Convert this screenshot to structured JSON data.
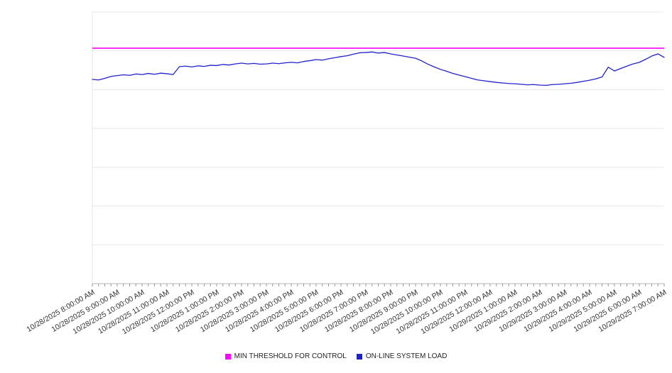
{
  "chart": {
    "legend": [
      {
        "label": "MIN THRESHOLD FOR CONTROL",
        "color": "#ff00ff"
      },
      {
        "label": "ON-LINE SYSTEM LOAD",
        "color": "#2222cc"
      }
    ]
  },
  "chart_data": {
    "type": "line",
    "title": "",
    "xlabel": "",
    "ylabel": "",
    "ylim": [
      0,
      100
    ],
    "y_axis_labels_visible": false,
    "grid": "horizontal",
    "legend_position": "bottom-center",
    "points_per_hour": 4,
    "x_labels": [
      "10/28/2025 8:00:00 AM",
      "10/28/2025 9:00:00 AM",
      "10/28/2025 10:00:00 AM",
      "10/28/2025 11:00:00 AM",
      "10/28/2025 12:00:00 PM",
      "10/28/2025 1:00:00 PM",
      "10/28/2025 2:00:00 PM",
      "10/28/2025 3:00:00 PM",
      "10/28/2025 4:00:00 PM",
      "10/28/2025 5:00:00 PM",
      "10/28/2025 6:00:00 PM",
      "10/28/2025 7:00:00 PM",
      "10/28/2025 8:00:00 PM",
      "10/28/2025 9:00:00 PM",
      "10/28/2025 10:00:00 PM",
      "10/28/2025 11:00:00 PM",
      "10/29/2025 12:00:00 AM",
      "10/29/2025 1:00:00 AM",
      "10/29/2025 2:00:00 AM",
      "10/29/2025 3:00:00 AM",
      "10/29/2025 4:00:00 AM",
      "10/29/2025 5:00:00 AM",
      "10/29/2025 6:00:00 AM",
      "10/29/2025 7:00:00 AM"
    ],
    "series": [
      {
        "name": "MIN THRESHOLD FOR CONTROL",
        "type": "threshold",
        "color": "#ff00ff",
        "value": 86.7
      },
      {
        "name": "ON-LINE SYSTEM LOAD",
        "type": "line",
        "color": "#2222cc",
        "values": [
          75.2,
          75.0,
          75.6,
          76.3,
          76.6,
          76.9,
          76.7,
          77.2,
          77.0,
          77.4,
          77.1,
          77.5,
          77.3,
          77.0,
          79.9,
          80.1,
          79.8,
          80.2,
          80.0,
          80.4,
          80.3,
          80.7,
          80.5,
          80.9,
          81.2,
          80.9,
          81.1,
          80.8,
          80.9,
          81.2,
          81.0,
          81.3,
          81.5,
          81.3,
          81.8,
          82.1,
          82.5,
          82.3,
          82.8,
          83.2,
          83.6,
          83.9,
          84.5,
          85.0,
          85.1,
          85.3,
          84.9,
          85.1,
          84.6,
          84.2,
          83.8,
          83.4,
          83.0,
          82.0,
          80.8,
          79.8,
          78.9,
          78.2,
          77.4,
          76.8,
          76.2,
          75.6,
          75.0,
          74.7,
          74.4,
          74.1,
          73.9,
          73.7,
          73.6,
          73.4,
          73.2,
          73.3,
          73.1,
          73.0,
          73.3,
          73.4,
          73.6,
          73.8,
          74.1,
          74.5,
          74.9,
          75.4,
          76.1,
          79.7,
          78.3,
          79.2,
          80.1,
          80.9,
          81.5,
          82.6,
          83.8,
          84.6,
          83.3
        ]
      }
    ]
  }
}
